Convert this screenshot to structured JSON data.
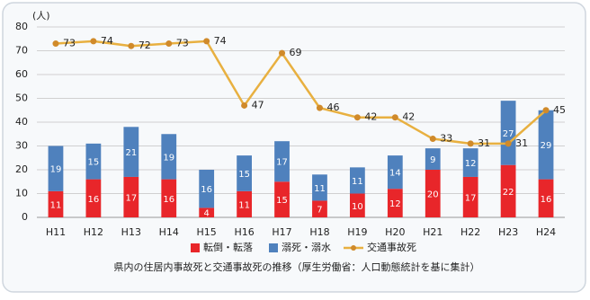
{
  "chart_data": {
    "type": "bar",
    "stacked": true,
    "y_unit": "(人)",
    "caption": "県内の住居内事故死と交通事故死の推移（厚生労働省：人口動態統計を基に集計）",
    "categories": [
      "H11",
      "H12",
      "H13",
      "H14",
      "H15",
      "H16",
      "H17",
      "H18",
      "H19",
      "H20",
      "H21",
      "H22",
      "H23",
      "H24"
    ],
    "series": [
      {
        "name": "転倒・転落",
        "type": "bar",
        "color": "#e8262a",
        "values": [
          11,
          16,
          17,
          16,
          4,
          11,
          15,
          7,
          10,
          12,
          20,
          17,
          22,
          16
        ]
      },
      {
        "name": "溺死・溺水",
        "type": "bar",
        "color": "#4f81bd",
        "values": [
          19,
          15,
          21,
          19,
          16,
          15,
          17,
          11,
          11,
          14,
          9,
          12,
          27,
          29
        ]
      },
      {
        "name": "交通事故死",
        "type": "line",
        "color": "#e8b040",
        "marker_color": "#d08a2a",
        "values": [
          73,
          74,
          72,
          73,
          74,
          47,
          69,
          46,
          42,
          42,
          33,
          31,
          31,
          45
        ]
      }
    ],
    "ylim": [
      0,
      80
    ],
    "yticks": [
      0,
      10,
      20,
      30,
      40,
      50,
      60,
      70,
      80
    ],
    "grid": true
  }
}
